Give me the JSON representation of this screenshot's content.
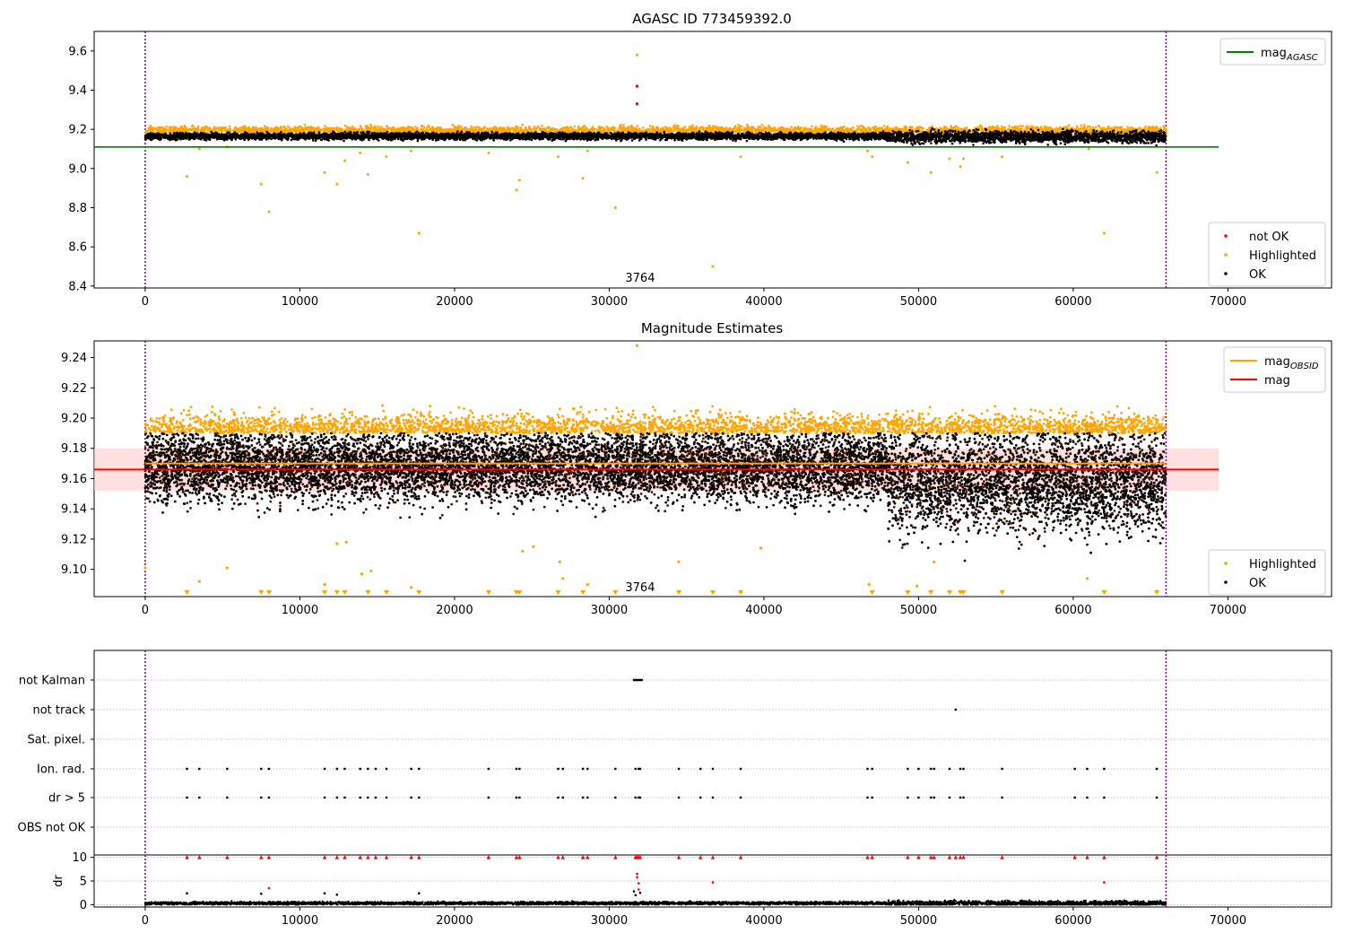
{
  "figure": {
    "panel1_title": "AGASC ID 773459392.0",
    "panel2_title": "Magnitude Estimates"
  },
  "chart_data": [
    {
      "type": "scatter",
      "title": "AGASC ID 773459392.0",
      "xlabel": "",
      "ylabel": "",
      "xlim": [
        -3300,
        76700
      ],
      "ylim": [
        8.39,
        9.7
      ],
      "xticks": [
        0,
        10000,
        20000,
        30000,
        40000,
        50000,
        60000,
        70000
      ],
      "xtick_labels": [
        "0",
        "10000",
        "20000",
        "30000",
        "40000",
        "50000",
        "60000",
        "70000"
      ],
      "yticks": [
        8.4,
        8.6,
        8.8,
        9.0,
        9.2,
        9.4,
        9.6
      ],
      "ytick_labels": [
        "8.4",
        "8.6",
        "8.8",
        "9.0",
        "9.2",
        "9.4",
        "9.6"
      ],
      "vlines": [
        0,
        66000
      ],
      "vline_color": "#800080",
      "hline": {
        "name": "mag_AGASC",
        "y": 9.11,
        "xrange": [
          -3300,
          69400
        ],
        "color": "#008000"
      },
      "annotation": {
        "text": "3764",
        "x": 32000,
        "y": 8.44
      },
      "legends": [
        {
          "position": "upper right",
          "entries": [
            {
              "label": "mag",
              "sub": "AGASC",
              "color": "#008000",
              "kind": "line"
            }
          ]
        },
        {
          "position": "lower right",
          "entries": [
            {
              "label": "not OK",
              "color": "#ff0000",
              "kind": "dot"
            },
            {
              "label": "Highlighted",
              "color": "#ffa500",
              "kind": "dot"
            },
            {
              "label": "OK",
              "color": "#000000",
              "kind": "dot"
            }
          ]
        }
      ],
      "ok_band": {
        "x": [
          0,
          66000
        ],
        "y_center": 9.165,
        "y_spread": 0.012
      },
      "highlighted_band": {
        "x": [
          0,
          66000
        ],
        "y_center": 9.195,
        "y_spread": 0.01
      },
      "series": [
        {
          "name": "not OK",
          "color": "#ff0000",
          "points": [
            [
              31800,
              9.42
            ],
            [
              31800,
              9.33
            ]
          ]
        },
        {
          "name": "Highlighted",
          "color": "#ffa500",
          "points": [
            [
              2700,
              8.96
            ],
            [
              3500,
              9.1
            ],
            [
              5300,
              9.11
            ],
            [
              7500,
              8.92
            ],
            [
              8000,
              8.78
            ],
            [
              11600,
              8.98
            ],
            [
              12400,
              8.92
            ],
            [
              12900,
              9.04
            ],
            [
              13900,
              9.08
            ],
            [
              14400,
              8.97
            ],
            [
              15600,
              9.06
            ],
            [
              17200,
              9.09
            ],
            [
              17700,
              8.67
            ],
            [
              22200,
              9.08
            ],
            [
              24000,
              8.89
            ],
            [
              24200,
              8.94
            ],
            [
              26700,
              9.06
            ],
            [
              28300,
              8.95
            ],
            [
              28600,
              9.09
            ],
            [
              30400,
              8.8
            ],
            [
              31800,
              9.58
            ],
            [
              36700,
              8.5
            ],
            [
              38500,
              9.06
            ],
            [
              46700,
              9.09
            ],
            [
              47000,
              9.06
            ],
            [
              49300,
              9.03
            ],
            [
              50800,
              8.98
            ],
            [
              52000,
              9.05
            ],
            [
              52700,
              9.01
            ],
            [
              52900,
              9.05
            ],
            [
              55400,
              9.06
            ],
            [
              61000,
              9.1
            ],
            [
              62000,
              8.67
            ],
            [
              65400,
              8.98
            ]
          ]
        },
        {
          "name": "OK",
          "color": "#000000",
          "points": []
        }
      ]
    },
    {
      "type": "scatter",
      "title": "Magnitude Estimates",
      "xlabel": "",
      "ylabel": "",
      "xlim": [
        -3300,
        76700
      ],
      "ylim": [
        9.082,
        9.251
      ],
      "xticks": [
        0,
        10000,
        20000,
        30000,
        40000,
        50000,
        60000,
        70000
      ],
      "xtick_labels": [
        "0",
        "10000",
        "20000",
        "30000",
        "40000",
        "50000",
        "60000",
        "70000"
      ],
      "yticks": [
        9.1,
        9.12,
        9.14,
        9.16,
        9.18,
        9.2,
        9.22,
        9.24
      ],
      "ytick_labels": [
        "9.10",
        "9.12",
        "9.14",
        "9.16",
        "9.18",
        "9.20",
        "9.22",
        "9.24"
      ],
      "vlines": [
        0,
        66000
      ],
      "vline_color": "#800080",
      "hlines": [
        {
          "name": "mag_OBSID",
          "y": 9.17,
          "xrange": [
            0,
            66000
          ],
          "color": "#ffa500"
        },
        {
          "name": "mag",
          "y": 9.166,
          "xrange": [
            -3300,
            69400
          ],
          "color": "#ff0000"
        }
      ],
      "shaded_band": {
        "y": [
          9.152,
          9.18
        ],
        "xrange": [
          -3300,
          69400
        ],
        "color": "#ffcccc"
      },
      "annotation": {
        "text": "3764",
        "x": 32000,
        "y": 9.088
      },
      "legends": [
        {
          "position": "upper right",
          "entries": [
            {
              "label": "mag",
              "sub": "OBSID",
              "color": "#ffa500",
              "kind": "line"
            },
            {
              "label": "mag",
              "color": "#ff0000",
              "kind": "line"
            }
          ]
        },
        {
          "position": "lower right",
          "entries": [
            {
              "label": "Highlighted",
              "color": "#ffa500",
              "kind": "dot"
            },
            {
              "label": "OK",
              "color": "#000000",
              "kind": "dot"
            }
          ]
        }
      ],
      "highlighted_outliers": [
        [
          0,
          9.101
        ],
        [
          3500,
          9.092
        ],
        [
          5300,
          9.101
        ],
        [
          11600,
          9.09
        ],
        [
          12400,
          9.117
        ],
        [
          13000,
          9.118
        ],
        [
          14000,
          9.097
        ],
        [
          14600,
          9.099
        ],
        [
          17200,
          9.088
        ],
        [
          24400,
          9.112
        ],
        [
          25100,
          9.115
        ],
        [
          26800,
          9.105
        ],
        [
          27000,
          9.094
        ],
        [
          28600,
          9.09
        ],
        [
          34500,
          9.105
        ],
        [
          39800,
          9.114
        ],
        [
          46800,
          9.09
        ],
        [
          49900,
          9.089
        ],
        [
          51000,
          9.105
        ],
        [
          60900,
          9.094
        ],
        [
          31800,
          9.248
        ]
      ],
      "clipped_markers_x": [
        2700,
        7500,
        8000,
        11600,
        12400,
        12900,
        14400,
        15600,
        17700,
        22200,
        24000,
        24200,
        26700,
        28300,
        30400,
        34500,
        36700,
        38500,
        47000,
        49300,
        50800,
        52000,
        52700,
        52900,
        55400,
        62000,
        65400
      ]
    },
    {
      "type": "scatter",
      "title": "",
      "xlabel": "",
      "ylabel": "",
      "xlim": [
        -3300,
        76700
      ],
      "xticks": [
        0,
        10000,
        20000,
        30000,
        40000,
        50000,
        60000,
        70000
      ],
      "xtick_labels": [
        "0",
        "10000",
        "20000",
        "30000",
        "40000",
        "50000",
        "60000",
        "70000"
      ],
      "vlines": [
        0,
        66000
      ],
      "vline_color": "#800080",
      "categories": [
        "not Kalman",
        "not track",
        "Sat. pixel.",
        "Ion. rad.",
        "dr > 5",
        "OBS not OK"
      ],
      "flags": {
        "not Kalman": [
          31600,
          31700,
          31800,
          31900,
          32000,
          32100
        ],
        "not track": [
          52400
        ],
        "Sat. pixel.": [],
        "Ion. rad.": [
          2700,
          3500,
          5300,
          7500,
          8000,
          11600,
          12400,
          12900,
          13900,
          14400,
          14900,
          15600,
          17200,
          17700,
          22200,
          24000,
          24200,
          26700,
          27000,
          28300,
          28600,
          30400,
          31700,
          31900,
          32000,
          34500,
          35900,
          36700,
          38500,
          46700,
          47000,
          49300,
          50000,
          50800,
          51000,
          52000,
          52700,
          52900,
          55400,
          60100,
          60900,
          62000,
          65400
        ],
        "dr > 5": [
          2700,
          3500,
          5300,
          7500,
          8000,
          11600,
          12400,
          12900,
          13900,
          14400,
          14900,
          15600,
          17200,
          17700,
          22200,
          24000,
          24200,
          26700,
          27000,
          28300,
          28600,
          30400,
          31700,
          31900,
          32000,
          34500,
          35900,
          36700,
          38500,
          46700,
          47000,
          49300,
          50000,
          50800,
          51000,
          52000,
          52700,
          52900,
          55400,
          60100,
          60900,
          62000,
          65400
        ],
        "OBS not OK": []
      }
    },
    {
      "type": "scatter",
      "title": "",
      "xlabel": "",
      "ylabel": "dr",
      "xlim": [
        -3300,
        76700
      ],
      "ylim": [
        -0.5,
        10.5
      ],
      "yticks": [
        0,
        5,
        10
      ],
      "ytick_labels": [
        "0",
        "5",
        "10"
      ],
      "xticks": [
        0,
        10000,
        20000,
        30000,
        40000,
        50000,
        60000,
        70000
      ],
      "xtick_labels": [
        "0",
        "10000",
        "20000",
        "30000",
        "40000",
        "50000",
        "60000",
        "70000"
      ],
      "vlines": [
        0,
        66000
      ],
      "vline_color": "#800080",
      "clip_markers_y": 10,
      "clip_marker_color": "#ff0000",
      "clip_markers_x": [
        2700,
        3500,
        5300,
        7500,
        8000,
        11600,
        12400,
        12900,
        13900,
        14400,
        14900,
        15600,
        17200,
        17700,
        22200,
        24000,
        24200,
        26700,
        27000,
        28300,
        28600,
        30400,
        31700,
        31800,
        31900,
        32000,
        34500,
        35900,
        36700,
        38500,
        46700,
        47000,
        49300,
        50000,
        50800,
        51000,
        52000,
        52400,
        52700,
        52900,
        55400,
        60100,
        60900,
        62000,
        65400
      ],
      "red_points": [
        [
          8000,
          3.5
        ],
        [
          31800,
          6.5
        ],
        [
          31800,
          5.8
        ],
        [
          31900,
          4.5
        ],
        [
          31900,
          3.2
        ],
        [
          36700,
          4.7
        ],
        [
          62000,
          4.7
        ]
      ],
      "black_points": [
        [
          2700,
          2.4
        ],
        [
          7500,
          2.3
        ],
        [
          11600,
          2.4
        ],
        [
          12400,
          2.1
        ],
        [
          17700,
          2.4
        ],
        [
          31600,
          2.8
        ],
        [
          31700,
          2.0
        ],
        [
          32000,
          2.5
        ]
      ],
      "baseline": {
        "x": [
          0,
          66000
        ],
        "y_mean": 0.3,
        "y_spread": 0.25
      }
    }
  ]
}
